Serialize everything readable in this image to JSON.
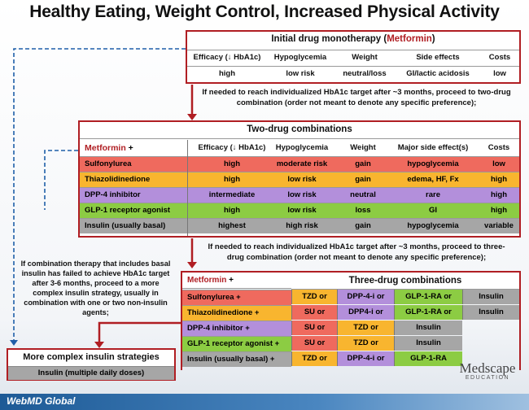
{
  "title": "Healthy Eating, Weight Control, Increased Physical Activity",
  "mono": {
    "header_prefix": "Initial drug monotherapy (",
    "header_drug": "Metformin",
    "header_suffix": ")",
    "columns": [
      "Efficacy (↓ HbA1c)",
      "Hypoglycemia",
      "Weight",
      "Side effects",
      "Costs"
    ],
    "values": [
      "high",
      "low risk",
      "neutral/loss",
      "GI/lactic acidosis",
      "low"
    ]
  },
  "note1": "If needed to reach individualized HbA1c target after ~3 months, proceed to two-drug combination (order not meant to denote any specific preference);",
  "two": {
    "header": "Two-drug combinations",
    "metformin_label": "Metformin",
    "plus": "+",
    "columns": [
      "Efficacy (↓ HbA1c)",
      "Hypoglycemia",
      "Weight",
      "Major side effect(s)",
      "Costs"
    ],
    "rows": [
      {
        "drug": "Sulfonylurea",
        "efficacy": "high",
        "hypo": "moderate risk",
        "weight": "gain",
        "side": "hypoglycemia",
        "cost": "low"
      },
      {
        "drug": "Thiazolidinedione",
        "efficacy": "high",
        "hypo": "low risk",
        "weight": "gain",
        "side": "edema, HF, Fx",
        "cost": "high"
      },
      {
        "drug": "DPP-4 inhibitor",
        "efficacy": "intermediate",
        "hypo": "low risk",
        "weight": "neutral",
        "side": "rare",
        "cost": "high"
      },
      {
        "drug": "GLP-1 receptor agonist",
        "efficacy": "high",
        "hypo": "low risk",
        "weight": "loss",
        "side": "GI",
        "cost": "high"
      },
      {
        "drug": "Insulin (usually basal)",
        "efficacy": "highest",
        "hypo": "high risk",
        "weight": "gain",
        "side": "hypoglycemia",
        "cost": "variable"
      }
    ]
  },
  "note2": "If needed to reach individualized HbA1c target after ~3 months, proceed to three-drug combination (order not meant to denote any specific preference);",
  "three": {
    "header": "Three-drug combinations",
    "metformin_label": "Metformin",
    "plus": "+",
    "rows": [
      {
        "drug": "Sulfonylurea +",
        "opts": [
          "TZD or",
          "DPP-4-i or",
          "GLP-1-RA or",
          "Insulin"
        ]
      },
      {
        "drug": "Thiazolidinedione +",
        "opts": [
          "SU or",
          "DPP4-i or",
          "GLP-1-RA or",
          "Insulin"
        ]
      },
      {
        "drug": "DPP-4 inhibitor +",
        "opts": [
          "SU or",
          "TZD or",
          "Insulin"
        ]
      },
      {
        "drug": "GLP-1 receptor agonist +",
        "opts": [
          "SU or",
          "TZD or",
          "Insulin"
        ]
      },
      {
        "drug": "Insulin (usually basal) +",
        "opts": [
          "TZD or",
          "DPP-4-i or",
          "GLP-1-RA"
        ]
      }
    ]
  },
  "note3": "If combination therapy that includes basal insulin has failed to achieve HbA1c target after 3-6 months, proceed to a more complex insulin strategy, usually in combination with one or two non-insulin agents;",
  "complex": {
    "header": "More complex insulin strategies",
    "sub": "Insulin (multiple daily doses)"
  },
  "footer": {
    "left": "WebMD Global",
    "right_top": "Medscape",
    "right_bottom": "EDUCATION"
  },
  "colors": {
    "accent": "#b01e23",
    "sulfonylurea": "#ef6a5e",
    "thiazolidinedione": "#f8b52f",
    "dpp4": "#b38fdb",
    "glp1": "#8ccc43",
    "insulin": "#a6a6a6",
    "footer_bar": "#1d5a96"
  }
}
